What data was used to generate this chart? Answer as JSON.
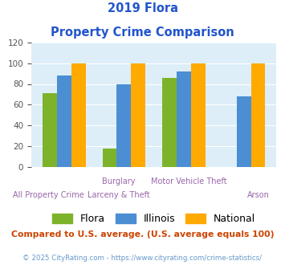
{
  "title_line1": "2019 Flora",
  "title_line2": "Property Crime Comparison",
  "series": {
    "Flora": [
      71,
      18,
      86,
      0
    ],
    "Illinois": [
      88,
      80,
      92,
      68
    ],
    "National": [
      100,
      100,
      100,
      100
    ]
  },
  "colors": {
    "Flora": "#7db32a",
    "Illinois": "#4b8ed4",
    "National": "#ffaa00"
  },
  "top_labels": [
    "",
    "Burglary",
    "Motor Vehicle Theft",
    ""
  ],
  "bottom_labels": [
    "All Property Crime",
    "Larceny & Theft",
    "",
    "Arson"
  ],
  "ylim": [
    0,
    120
  ],
  "yticks": [
    0,
    20,
    40,
    60,
    80,
    100,
    120
  ],
  "title_color": "#2255cc",
  "xlabel_color": "#9966aa",
  "footer_note": "Compared to U.S. average. (U.S. average equals 100)",
  "footer_note_color": "#cc4400",
  "copyright": "© 2025 CityRating.com - https://www.cityrating.com/crime-statistics/",
  "copyright_color": "#6699cc",
  "plot_bg_color": "#ddeef8"
}
